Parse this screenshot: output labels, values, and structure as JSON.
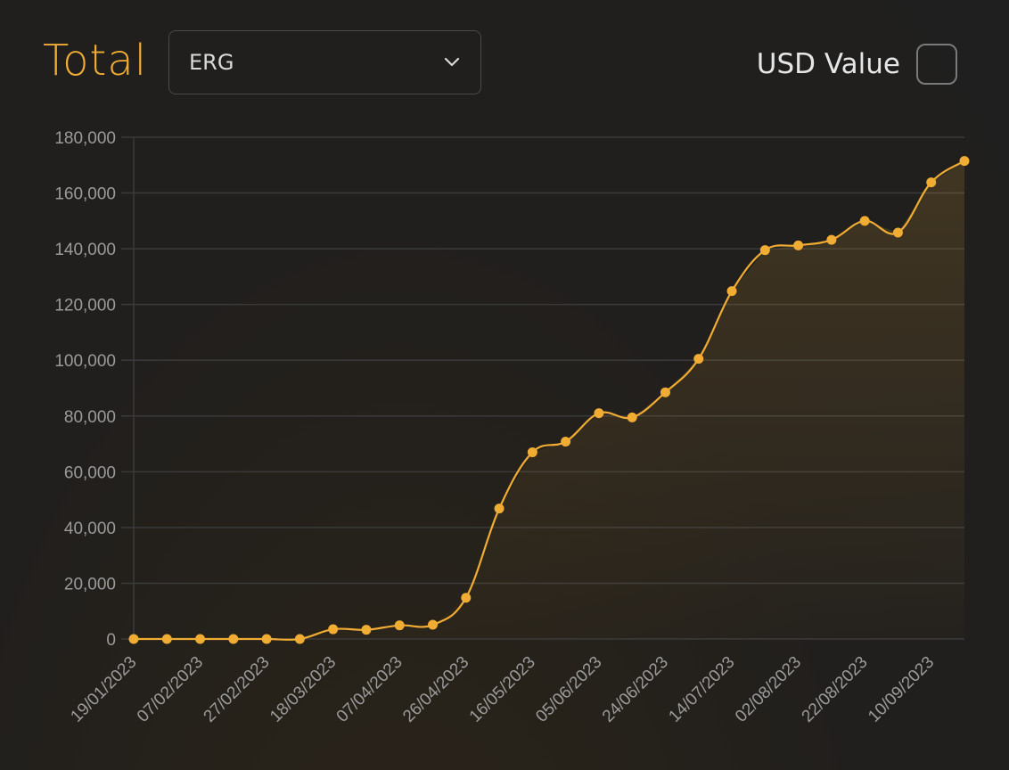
{
  "header": {
    "title": "Total",
    "select_value": "ERG",
    "usd_label": "USD Value"
  },
  "colors": {
    "accent": "#f0ac33",
    "grid": "#3a3a3a",
    "tick": "#9b9b9b"
  },
  "icons": {
    "select": "chevron-down-icon",
    "checkbox": "checkbox-icon"
  },
  "chart_data": {
    "type": "area",
    "title": "",
    "xlabel": "",
    "ylabel": "",
    "ylim": [
      0,
      180000
    ],
    "y_ticks": [
      0,
      20000,
      40000,
      60000,
      80000,
      100000,
      120000,
      140000,
      160000,
      180000
    ],
    "y_tick_labels": [
      "0",
      "20,000",
      "40,000",
      "60,000",
      "80,000",
      "100,000",
      "120,000",
      "140,000",
      "160,000",
      "180,000"
    ],
    "x_tick_labels": [
      "19/01/2023",
      "07/02/2023",
      "27/02/2023",
      "18/03/2023",
      "07/04/2023",
      "26/04/2023",
      "16/05/2023",
      "05/06/2023",
      "24/06/2023",
      "14/07/2023",
      "02/08/2023",
      "22/08/2023",
      "10/09/2023"
    ],
    "grid": true,
    "legend": "none",
    "series": [
      {
        "values": [
          0,
          0,
          0,
          0,
          0,
          0,
          3500,
          3300,
          4900,
          5100,
          14800,
          46800,
          67000,
          70800,
          81000,
          79500,
          88500,
          100500,
          124800,
          139500,
          141200,
          143200,
          150000,
          145800,
          163800,
          171500
        ]
      }
    ]
  }
}
